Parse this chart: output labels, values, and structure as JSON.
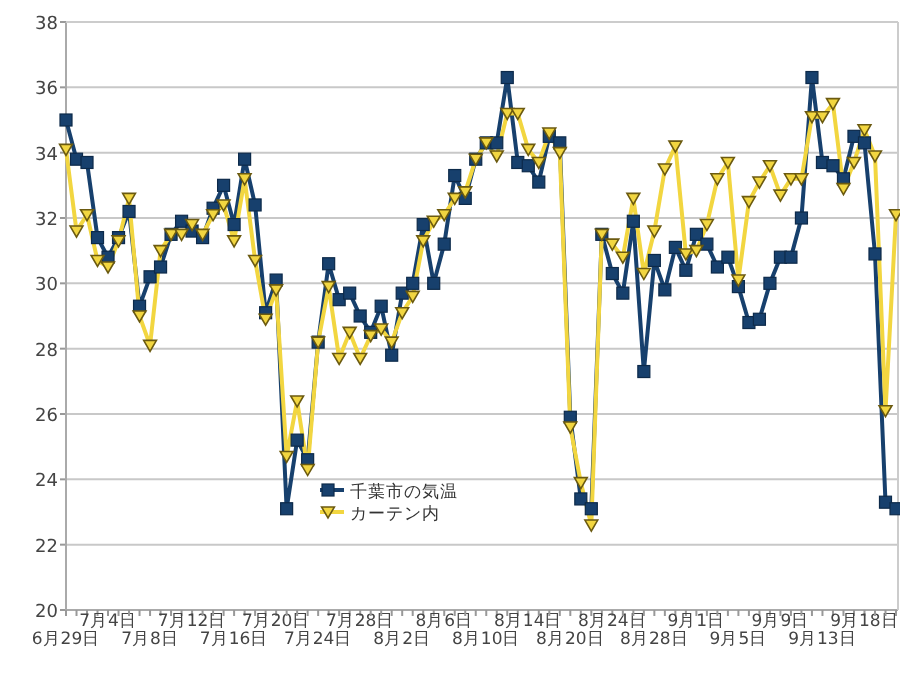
{
  "chart_data": {
    "type": "line",
    "categories": [
      "6月29日",
      null,
      null,
      null,
      "7月4日",
      null,
      null,
      null,
      "7月8日",
      null,
      null,
      null,
      "7月12日",
      null,
      null,
      null,
      "7月16日",
      null,
      null,
      null,
      "7月20日",
      null,
      null,
      null,
      "7月24日",
      null,
      null,
      null,
      "7月28日",
      null,
      null,
      null,
      "8月2日",
      null,
      null,
      null,
      "8月6日",
      null,
      null,
      null,
      "8月10日",
      null,
      null,
      null,
      "8月14日",
      null,
      null,
      null,
      "8月20日",
      null,
      null,
      null,
      "8月24日",
      null,
      null,
      null,
      "8月28日",
      null,
      null,
      null,
      "9月1日",
      null,
      null,
      null,
      "9月5日",
      null,
      null,
      null,
      "9月9日",
      null,
      null,
      null,
      "9月13日",
      null,
      null,
      null,
      "9月18日",
      null,
      null,
      null
    ],
    "series": [
      {
        "name": "千葉市の気温",
        "color": "#17406d",
        "marker": "square",
        "values": [
          35.0,
          33.8,
          33.7,
          31.4,
          30.8,
          31.4,
          32.2,
          29.3,
          30.2,
          30.5,
          31.5,
          31.9,
          31.6,
          31.4,
          32.3,
          33.0,
          31.8,
          33.8,
          32.4,
          29.1,
          30.1,
          23.1,
          25.2,
          24.6,
          28.2,
          30.6,
          29.5,
          29.7,
          29.0,
          28.5,
          29.3,
          27.8,
          29.7,
          30.0,
          31.8,
          30.0,
          31.2,
          33.3,
          32.6,
          33.8,
          34.3,
          34.3,
          36.3,
          33.7,
          33.6,
          33.1,
          34.5,
          34.3,
          25.9,
          23.4,
          23.1,
          31.5,
          30.3,
          29.7,
          31.9,
          27.3,
          30.7,
          29.8,
          31.1,
          30.4,
          31.5,
          31.2,
          30.5,
          30.8,
          29.9,
          28.8,
          28.9,
          30.0,
          30.8,
          30.8,
          32.0,
          36.3,
          33.7,
          33.6,
          33.2,
          34.5,
          34.3,
          30.9,
          23.3,
          23.1
        ]
      },
      {
        "name": "カーテン内",
        "color": "#f2d640",
        "marker": "triangle",
        "values": [
          34.1,
          31.6,
          32.1,
          30.7,
          30.5,
          31.3,
          32.6,
          29.0,
          28.1,
          31.0,
          31.5,
          31.5,
          31.8,
          31.5,
          32.1,
          32.4,
          31.3,
          33.2,
          30.7,
          28.9,
          29.8,
          24.7,
          26.4,
          24.3,
          28.2,
          29.9,
          27.7,
          28.5,
          27.7,
          28.4,
          28.6,
          28.2,
          29.1,
          29.6,
          31.3,
          31.9,
          32.1,
          32.6,
          32.8,
          33.8,
          34.3,
          33.9,
          35.2,
          35.2,
          34.1,
          33.7,
          34.6,
          34.0,
          25.6,
          23.9,
          22.6,
          31.5,
          31.2,
          30.8,
          32.6,
          30.3,
          31.6,
          33.5,
          34.2,
          30.9,
          31.0,
          31.8,
          33.2,
          33.7,
          30.1,
          32.5,
          33.1,
          33.6,
          32.7,
          33.2,
          33.2,
          35.1,
          35.1,
          35.5,
          32.9,
          33.7,
          34.7,
          33.9,
          26.1,
          32.1
        ]
      }
    ],
    "ylim": [
      20,
      38
    ],
    "yticks": [
      20,
      22,
      24,
      26,
      28,
      30,
      32,
      34,
      36,
      38
    ],
    "grid": "y",
    "legend": "bottom left"
  }
}
